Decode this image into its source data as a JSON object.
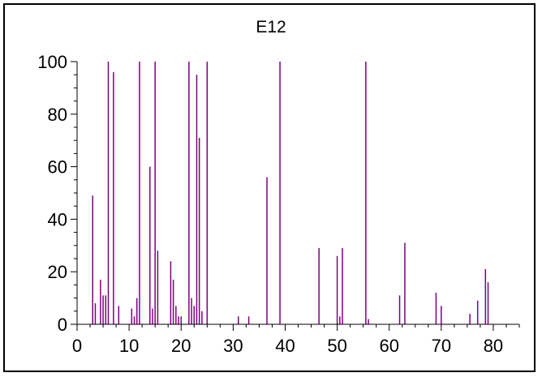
{
  "chart_data": {
    "type": "bar",
    "title": "E12",
    "xlabel": "",
    "ylabel": "",
    "xlim": [
      0,
      85
    ],
    "ylim": [
      0,
      100
    ],
    "x_ticks": [
      0,
      10,
      20,
      30,
      40,
      50,
      60,
      70,
      80
    ],
    "y_ticks": [
      0,
      20,
      40,
      60,
      80,
      100
    ],
    "grid": false,
    "bar_color": "#800080",
    "x": [
      3,
      3.5,
      4.5,
      5,
      5.5,
      6,
      7,
      8,
      10.5,
      11,
      11.5,
      12,
      14,
      14.5,
      15,
      15.5,
      18,
      18.5,
      19,
      19.5,
      20,
      21.5,
      22,
      22.5,
      23,
      23.5,
      24,
      25,
      31,
      33,
      36.5,
      39,
      46.5,
      50,
      50.5,
      51,
      55.5,
      56,
      62,
      63,
      69,
      70,
      75.5,
      77,
      78.5,
      79
    ],
    "values": [
      49,
      8,
      17,
      11,
      11,
      100,
      96,
      7,
      6,
      3,
      10,
      100,
      60,
      6,
      100,
      28,
      24,
      17,
      7,
      3,
      3,
      100,
      10,
      7,
      95,
      71,
      5,
      100,
      3,
      3,
      56,
      100,
      29,
      26,
      3,
      29,
      100,
      2,
      11,
      31,
      12,
      7,
      4,
      9,
      21,
      16
    ]
  }
}
